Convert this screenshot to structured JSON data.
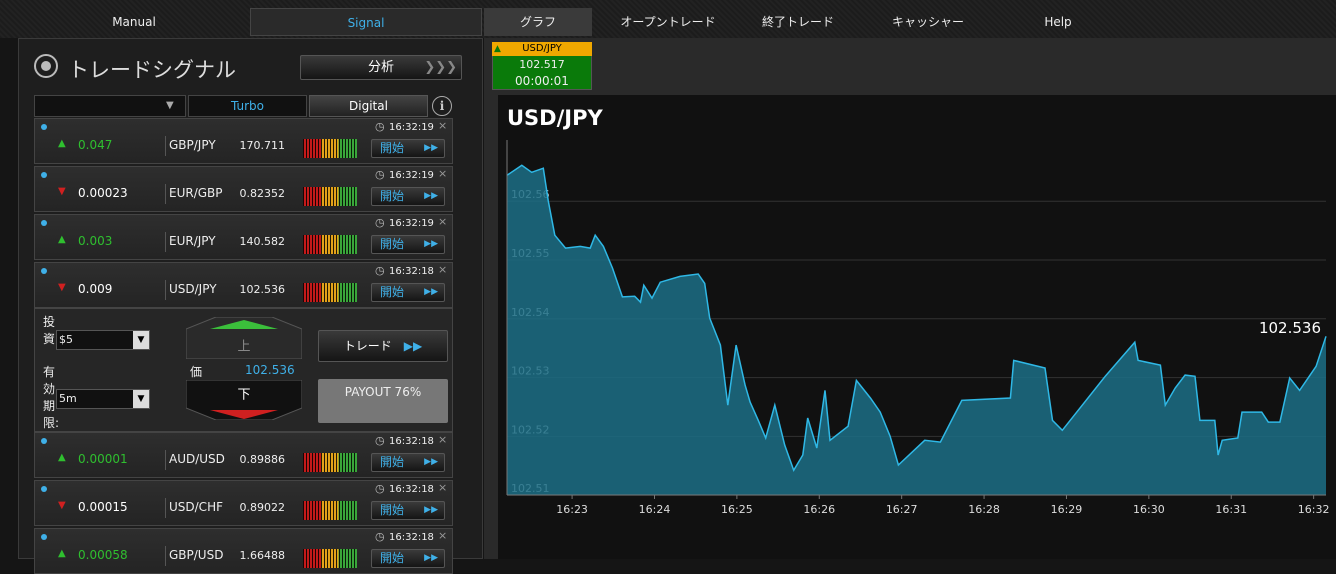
{
  "nav": {
    "left_tabs": [
      "Manual",
      "Signal"
    ],
    "right_tabs": [
      "グラフ",
      "オープントレード",
      "終了トレード",
      "キャッシャー",
      "Help"
    ]
  },
  "signal_panel": {
    "title": "トレードシグナル",
    "analyze_button": "分析",
    "filters": [
      "Turbo",
      "Digital"
    ],
    "start_button": "開始",
    "signals": [
      {
        "direction": "up",
        "change": "0.047",
        "pair": "GBP/JPY",
        "price": "170.711",
        "time": "16:32:19"
      },
      {
        "direction": "down",
        "change": "0.00023",
        "pair": "EUR/GBP",
        "price": "0.82352",
        "time": "16:32:19"
      },
      {
        "direction": "up",
        "change": "0.003",
        "pair": "EUR/JPY",
        "price": "140.582",
        "time": "16:32:19"
      },
      {
        "direction": "down",
        "change": "0.009",
        "pair": "USD/JPY",
        "price": "102.536",
        "time": "16:32:18"
      },
      {
        "direction": "up",
        "change": "0.00001",
        "pair": "AUD/USD",
        "price": "0.89886",
        "time": "16:32:18"
      },
      {
        "direction": "down",
        "change": "0.00015",
        "pair": "USD/CHF",
        "price": "0.89022",
        "time": "16:32:18"
      },
      {
        "direction": "up",
        "change": "0.00058",
        "pair": "GBP/USD",
        "price": "1.66488",
        "time": "16:32:18"
      }
    ]
  },
  "trade_form": {
    "investment_label": "投資:",
    "investment": "$5",
    "expiry_label": "有効期限:",
    "expiry": "5m",
    "up_button": "上",
    "down_button": "下",
    "price_label": "価",
    "price": "102.536",
    "trade_button": "トレード",
    "payout": "PAYOUT 76%"
  },
  "asset_tab": {
    "pair": "USD/JPY",
    "price": "102.517",
    "timer": "00:00:01"
  },
  "chart_data": {
    "type": "area",
    "title": "USD/JPY",
    "color": "#2fb8e6",
    "fill": "#1c6f86",
    "grid": true,
    "x": [
      22.21,
      22.39,
      22.51,
      22.65,
      22.71,
      22.79,
      22.92,
      23.1,
      23.22,
      23.28,
      23.38,
      23.49,
      23.61,
      23.76,
      23.83,
      23.87,
      23.97,
      24.07,
      24.31,
      24.53,
      24.61,
      24.67,
      24.8,
      24.89,
      24.99,
      25.1,
      25.16,
      25.26,
      25.35,
      25.46,
      25.58,
      25.69,
      25.8,
      25.86,
      25.97,
      26.07,
      26.13,
      26.35,
      26.45,
      26.62,
      26.74,
      26.86,
      26.96,
      27.28,
      27.47,
      27.73,
      28.32,
      28.36,
      28.74,
      28.83,
      28.95,
      29.47,
      29.83,
      29.87,
      30.14,
      30.2,
      30.32,
      30.44,
      30.56,
      30.62,
      30.8,
      30.84,
      30.89,
      31.08,
      31.13,
      31.37,
      31.45,
      31.59,
      31.71,
      31.83,
      32.03,
      32.15
    ],
    "values": [
      102.5634,
      102.5651,
      102.5639,
      102.5646,
      102.5591,
      102.5532,
      102.551,
      102.5513,
      102.551,
      102.5532,
      102.5513,
      102.5476,
      102.5427,
      102.5428,
      102.5418,
      102.5447,
      102.5425,
      102.5452,
      102.5462,
      102.5466,
      102.545,
      102.5391,
      102.5345,
      102.5243,
      102.5345,
      102.5277,
      102.5248,
      102.5217,
      102.5187,
      102.5243,
      102.5175,
      102.5132,
      102.5158,
      102.5221,
      102.517,
      102.5268,
      102.5183,
      102.5207,
      102.5285,
      102.5255,
      102.5231,
      102.519,
      102.5141,
      102.5183,
      102.518,
      102.5251,
      102.5255,
      102.5319,
      102.5306,
      102.5217,
      102.52,
      102.5292,
      102.535,
      102.5319,
      102.5311,
      102.5243,
      102.5272,
      102.5294,
      102.5292,
      102.5217,
      102.5217,
      102.5158,
      102.5183,
      102.5187,
      102.5231,
      102.5231,
      102.5214,
      102.5214,
      102.5289,
      102.5268,
      102.5309,
      102.536
    ],
    "last_value_label": "102.536",
    "xlim": [
      22.21,
      32.15
    ],
    "ylim": [
      102.509,
      102.5694
    ],
    "xticks": [
      {
        "value": 23,
        "label": "16:23"
      },
      {
        "value": 24,
        "label": "16:24"
      },
      {
        "value": 25,
        "label": "16:25"
      },
      {
        "value": 26,
        "label": "16:26"
      },
      {
        "value": 27,
        "label": "16:27"
      },
      {
        "value": 28,
        "label": "16:28"
      },
      {
        "value": 29,
        "label": "16:29"
      },
      {
        "value": 30,
        "label": "16:30"
      },
      {
        "value": 31,
        "label": "16:31"
      },
      {
        "value": 32,
        "label": "16:32"
      }
    ],
    "yticks": [
      102.51,
      102.52,
      102.53,
      102.54,
      102.55,
      102.56
    ]
  }
}
